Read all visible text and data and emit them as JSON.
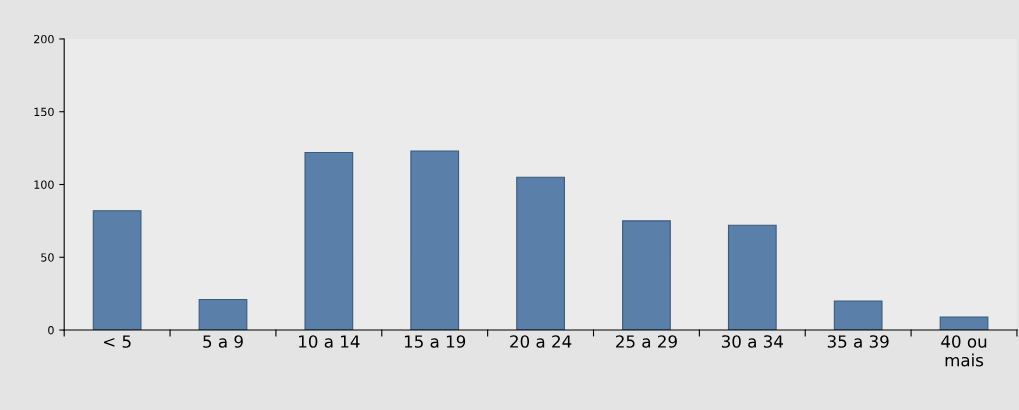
{
  "chart_data": {
    "type": "bar",
    "categories": [
      "< 5",
      "5 a 9",
      "10 a 14",
      "15 a 19",
      "20 a 24",
      "25 a 29",
      "30 a 34",
      "35 a 39",
      "40 ou\nmais"
    ],
    "values": [
      82,
      21,
      122,
      123,
      105,
      75,
      72,
      20,
      9
    ],
    "color": "#5a7fa8",
    "ylim": [
      0,
      200
    ],
    "yticks": [
      0,
      50,
      100,
      150,
      200
    ],
    "grid": false,
    "legend": false
  }
}
